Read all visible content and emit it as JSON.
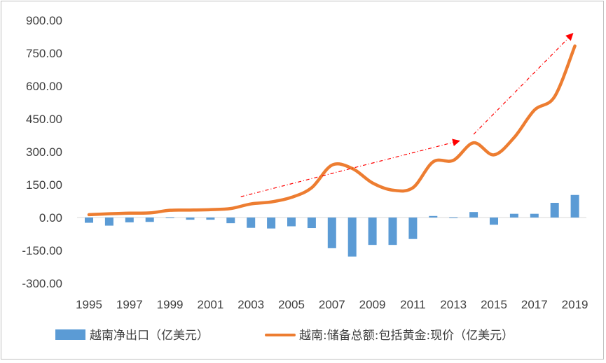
{
  "chart_data": {
    "type": "bar+line",
    "x": [
      1995,
      1996,
      1997,
      1998,
      1999,
      2000,
      2001,
      2002,
      2003,
      2004,
      2005,
      2006,
      2007,
      2008,
      2009,
      2010,
      2011,
      2012,
      2013,
      2014,
      2015,
      2016,
      2017,
      2018,
      2019
    ],
    "x_tick_labels": [
      "1995",
      "1997",
      "1999",
      "2001",
      "2003",
      "2005",
      "2007",
      "2009",
      "2011",
      "2013",
      "2015",
      "2017",
      "2019"
    ],
    "y_tick_labels": [
      "900.00",
      "750.00",
      "600.00",
      "450.00",
      "300.00",
      "150.00",
      "0.00",
      "-150.00",
      "-300.00"
    ],
    "ylim": [
      -300,
      900
    ],
    "series": [
      {
        "name": "越南净出口（亿美元）",
        "type": "bar",
        "color": "#5b9bd5",
        "values": [
          -24,
          -37,
          -22,
          -20,
          -2,
          -10,
          -10,
          -26,
          -47,
          -50,
          -40,
          -48,
          -140,
          -178,
          -125,
          -125,
          -98,
          7,
          -2,
          25,
          -33,
          17,
          17,
          67,
          103
        ]
      },
      {
        "name": "越南:储备总额:包括黄金:现价（亿美元）",
        "type": "line",
        "color": "#ed7d31",
        "values": [
          13,
          17,
          20,
          21,
          33,
          34,
          36,
          41,
          62,
          71,
          92,
          136,
          239,
          224,
          158,
          125,
          136,
          254,
          261,
          341,
          286,
          365,
          490,
          552,
          783
        ]
      }
    ],
    "annotations": [
      {
        "type": "dashed-arrow",
        "color": "#ff0000",
        "from": [
          2002.5,
          95
        ],
        "to": [
          2013.3,
          350
        ]
      },
      {
        "type": "dashed-arrow",
        "color": "#ff0000",
        "from": [
          2014,
          380
        ],
        "to": [
          2018.9,
          840
        ]
      }
    ],
    "grid": false,
    "legend": "bottom"
  }
}
